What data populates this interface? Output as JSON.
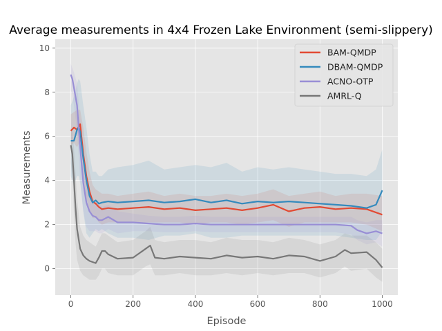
{
  "chart_data": {
    "type": "line",
    "title": "Average measurements in 4x4 Frozen Lake Environment (semi-slippery)",
    "xlabel": "Episode",
    "ylabel": "Measurements",
    "xlim": [
      -50,
      1050
    ],
    "ylim": [
      -1.2,
      10.4
    ],
    "xticks": [
      0,
      200,
      400,
      600,
      800,
      1000
    ],
    "yticks": [
      0,
      2,
      4,
      6,
      8,
      10
    ],
    "grid": true,
    "legend_position": "top-right",
    "series": [
      {
        "name": "BAM-QMDP",
        "color": "#e24a33",
        "x": [
          0,
          10,
          20,
          30,
          40,
          50,
          60,
          70,
          80,
          90,
          100,
          120,
          150,
          200,
          250,
          300,
          350,
          400,
          450,
          500,
          550,
          600,
          650,
          700,
          750,
          800,
          850,
          900,
          950,
          1000
        ],
        "y": [
          6.25,
          6.4,
          6.3,
          6.55,
          5.2,
          4.2,
          3.5,
          3.05,
          2.95,
          2.8,
          2.7,
          2.75,
          2.7,
          2.75,
          2.8,
          2.7,
          2.75,
          2.65,
          2.7,
          2.75,
          2.65,
          2.75,
          2.9,
          2.6,
          2.75,
          2.8,
          2.7,
          2.75,
          2.7,
          2.45
        ],
        "band": {
          "upper": [
            7.0,
            7.1,
            7.2,
            7.2,
            6.4,
            5.3,
            4.4,
            3.8,
            3.6,
            3.5,
            3.4,
            3.4,
            3.3,
            3.4,
            3.5,
            3.3,
            3.4,
            3.3,
            3.3,
            3.4,
            3.3,
            3.4,
            3.6,
            3.3,
            3.4,
            3.5,
            3.3,
            3.4,
            3.4,
            3.3
          ],
          "lower": [
            5.6,
            5.7,
            5.5,
            5.8,
            4.2,
            3.2,
            2.6,
            2.3,
            2.3,
            2.1,
            2.0,
            2.1,
            2.1,
            2.1,
            2.1,
            2.1,
            2.1,
            2.0,
            2.1,
            2.1,
            2.0,
            2.1,
            2.2,
            1.9,
            2.1,
            2.1,
            2.1,
            2.1,
            2.0,
            1.7
          ]
        }
      },
      {
        "name": "DBAM-QMDP",
        "color": "#348abd",
        "x": [
          0,
          10,
          20,
          25,
          30,
          40,
          50,
          60,
          70,
          80,
          90,
          100,
          120,
          150,
          200,
          250,
          300,
          350,
          400,
          450,
          500,
          550,
          600,
          650,
          700,
          750,
          800,
          850,
          900,
          950,
          980,
          1000
        ],
        "y": [
          5.8,
          5.8,
          6.3,
          6.4,
          6.2,
          5.0,
          4.0,
          3.3,
          3.0,
          3.1,
          2.95,
          3.0,
          3.05,
          3.0,
          3.05,
          3.1,
          3.0,
          3.05,
          3.15,
          3.0,
          3.1,
          2.95,
          3.05,
          3.0,
          3.05,
          3.0,
          2.95,
          2.9,
          2.85,
          2.75,
          2.9,
          3.55
        ],
        "band": {
          "upper": [
            7.4,
            7.8,
            8.4,
            8.6,
            8.5,
            7.4,
            6.4,
            5.2,
            4.4,
            4.4,
            4.2,
            4.2,
            4.5,
            4.6,
            4.7,
            4.9,
            4.5,
            4.6,
            4.7,
            4.6,
            4.8,
            4.4,
            4.6,
            4.5,
            4.6,
            4.5,
            4.4,
            4.3,
            4.3,
            4.2,
            4.5,
            5.4
          ],
          "lower": [
            4.2,
            3.8,
            4.2,
            4.2,
            3.9,
            2.6,
            1.6,
            1.4,
            1.6,
            1.8,
            1.7,
            1.8,
            1.6,
            1.4,
            1.4,
            1.3,
            1.5,
            1.5,
            1.6,
            1.4,
            1.4,
            1.5,
            1.5,
            1.5,
            1.5,
            1.5,
            1.5,
            1.5,
            1.4,
            1.3,
            1.3,
            1.7
          ]
        }
      },
      {
        "name": "ACNO-OTP",
        "color": "#988ed5",
        "x": [
          0,
          5,
          10,
          20,
          30,
          40,
          50,
          60,
          70,
          80,
          90,
          100,
          120,
          150,
          200,
          250,
          300,
          350,
          400,
          450,
          500,
          550,
          600,
          650,
          700,
          750,
          800,
          850,
          900,
          920,
          950,
          980,
          1000
        ],
        "y": [
          8.8,
          8.6,
          8.2,
          7.4,
          5.5,
          3.9,
          3.0,
          2.6,
          2.4,
          2.35,
          2.2,
          2.2,
          2.35,
          2.1,
          2.1,
          2.05,
          2.0,
          2.0,
          2.05,
          2.0,
          2.0,
          2.0,
          2.0,
          2.0,
          2.0,
          2.0,
          2.0,
          2.0,
          1.95,
          1.75,
          1.6,
          1.7,
          1.6
        ],
        "band": {
          "upper": [
            9.3,
            9.1,
            8.9,
            8.4,
            6.8,
            5.2,
            4.2,
            3.6,
            3.2,
            3.0,
            2.9,
            2.8,
            2.9,
            2.6,
            2.5,
            2.4,
            2.35,
            2.35,
            2.4,
            2.35,
            2.35,
            2.35,
            2.35,
            2.35,
            2.35,
            2.35,
            2.35,
            2.35,
            2.35,
            2.2,
            2.1,
            2.2,
            2.2
          ],
          "lower": [
            8.1,
            7.9,
            7.4,
            6.2,
            4.1,
            2.6,
            1.9,
            1.7,
            1.7,
            1.7,
            1.6,
            1.6,
            1.8,
            1.6,
            1.7,
            1.7,
            1.65,
            1.65,
            1.7,
            1.65,
            1.65,
            1.65,
            1.65,
            1.65,
            1.65,
            1.65,
            1.65,
            1.65,
            1.55,
            1.3,
            1.1,
            1.2,
            1.0
          ]
        }
      },
      {
        "name": "AMRL-Q",
        "color": "#777777",
        "x": [
          0,
          5,
          10,
          15,
          20,
          30,
          40,
          50,
          60,
          70,
          80,
          90,
          100,
          110,
          120,
          150,
          200,
          240,
          255,
          270,
          300,
          350,
          400,
          450,
          500,
          550,
          600,
          650,
          700,
          750,
          800,
          850,
          880,
          900,
          950,
          980,
          1000
        ],
        "y": [
          5.6,
          5.2,
          4.0,
          2.8,
          1.8,
          0.9,
          0.6,
          0.45,
          0.35,
          0.3,
          0.25,
          0.5,
          0.8,
          0.8,
          0.65,
          0.45,
          0.5,
          0.9,
          1.05,
          0.5,
          0.45,
          0.55,
          0.5,
          0.45,
          0.6,
          0.5,
          0.55,
          0.45,
          0.6,
          0.55,
          0.35,
          0.55,
          0.85,
          0.7,
          0.75,
          0.4,
          0.05
        ],
        "band": {
          "upper": [
            6.4,
            6.2,
            5.5,
            4.4,
            3.2,
            1.9,
            1.5,
            1.3,
            1.2,
            1.1,
            1.0,
            1.3,
            1.6,
            1.6,
            1.5,
            1.2,
            1.3,
            1.7,
            1.9,
            1.3,
            1.2,
            1.3,
            1.3,
            1.2,
            1.4,
            1.3,
            1.3,
            1.2,
            1.4,
            1.3,
            1.1,
            1.3,
            1.6,
            1.5,
            1.5,
            1.2,
            0.9
          ],
          "lower": [
            4.8,
            4.2,
            2.5,
            1.2,
            0.4,
            -0.1,
            -0.3,
            -0.4,
            -0.5,
            -0.5,
            -0.5,
            -0.3,
            0.0,
            0.0,
            -0.2,
            -0.3,
            -0.3,
            0.1,
            0.2,
            -0.3,
            -0.3,
            -0.2,
            -0.3,
            -0.3,
            -0.2,
            -0.3,
            -0.2,
            -0.3,
            -0.2,
            -0.2,
            -0.4,
            -0.2,
            0.1,
            -0.1,
            0.0,
            -0.4,
            -0.6
          ]
        }
      }
    ]
  }
}
